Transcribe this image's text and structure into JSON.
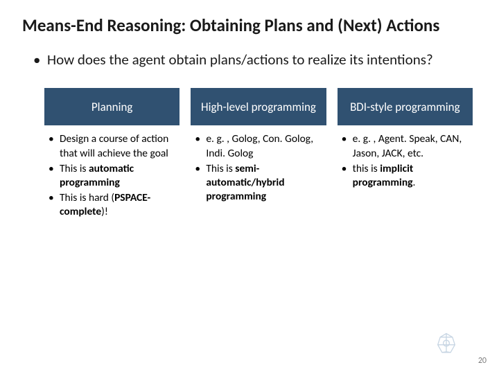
{
  "slide": {
    "title": "Means-End Reasoning: Obtaining Plans and (Next) Actions",
    "question": "How does the agent obtain plans/actions to realize its intentions?",
    "page_number": "20"
  },
  "style": {
    "bg_color": "#ffffff",
    "title_color": "#1a1a1a",
    "title_fontsize": 25,
    "header_bg": "#305171",
    "header_fg": "#ffffff",
    "body_fontsize": 15.5,
    "logo_color": "#7aa0c4",
    "page_num_color": "#7a7a7a"
  },
  "columns": [
    {
      "header": "Planning",
      "body_html": "<ul><li><span class='b'>•</span><span class='t'>Design a course of action that will achieve the goal</span></li><li><span class='b'>•</span><span class='t'>This is <b>automatic programming</b></span></li><li><span class='b'>•</span><span class='t'>This is hard (<b>PSPACE-complete</b>)!</span></li></ul>"
    },
    {
      "header": "High-level programming",
      "body_html": "<ul><li><span class='b'>•</span><span class='t'>e. g. , Golog, Con. Golog, Indi. Golog</span></li><li><span class='b'>•</span><span class='t'>This is <b>semi-automatic/hybrid programming</b></span></li></ul>"
    },
    {
      "header": "BDI-style programming",
      "body_html": "<ul><li><span class='b'>•</span><span class='t'>e. g. , Agent. Speak, CAN, Jason, JACK, etc.</span></li><li><span class='b'>•</span><span class='t'>this is <b>implicit programming</b>.</span></li></ul>"
    }
  ]
}
